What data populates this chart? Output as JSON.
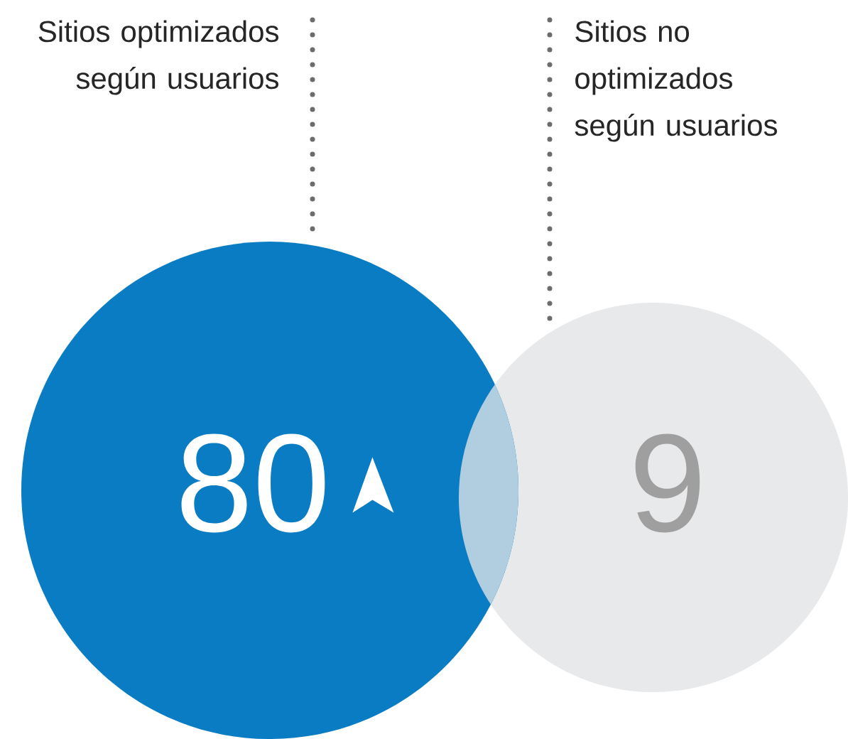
{
  "chart_data": {
    "type": "other",
    "categories": [
      "Sitios optimizados según usuarios",
      "Sitios no optimizados según usuarios"
    ],
    "values": [
      80,
      9
    ],
    "colors": [
      "#0a7cc4",
      "#e8e9ea"
    ],
    "data_labels": true
  }
}
